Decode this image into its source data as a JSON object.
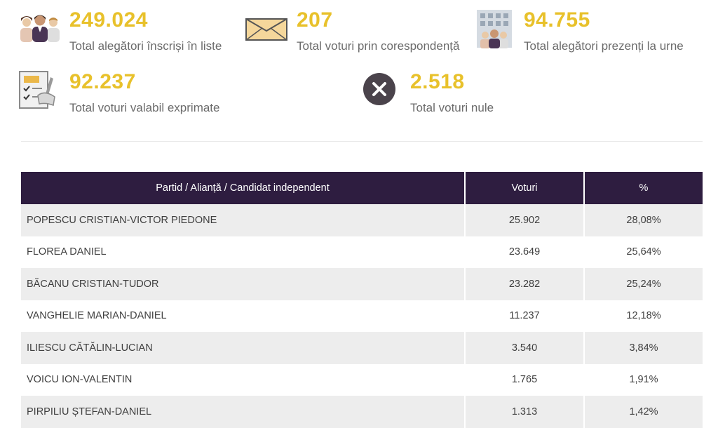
{
  "stats": {
    "registered": {
      "value": "249.024",
      "label": "Total alegători înscriși în liste",
      "icon": "people-group-icon"
    },
    "mail_votes": {
      "value": "207",
      "label": "Total voturi prin corespondență",
      "icon": "envelope-icon"
    },
    "present": {
      "value": "94.755",
      "label": "Total alegători prezenți la urne",
      "icon": "building-voters-icon"
    },
    "valid": {
      "value": "92.237",
      "label": "Total voturi valabil exprimate",
      "icon": "checklist-ballot-icon"
    },
    "null_votes": {
      "value": "2.518",
      "label": "Total voturi nule",
      "icon": "x-circle-icon"
    }
  },
  "colors": {
    "accent": "#e8c12b",
    "header_bg": "#2e1d40",
    "row_alt": "#ededed",
    "label": "#6b6b6b"
  },
  "table": {
    "headers": [
      "Partid / Alianță / Candidat independent",
      "Voturi",
      "%"
    ],
    "rows": [
      {
        "name": "POPESCU CRISTIAN-VICTOR PIEDONE",
        "votes": "25.902",
        "percent": "28,08%"
      },
      {
        "name": "FLOREA DANIEL",
        "votes": "23.649",
        "percent": "25,64%"
      },
      {
        "name": "BĂCANU CRISTIAN-TUDOR",
        "votes": "23.282",
        "percent": "25,24%"
      },
      {
        "name": "VANGHELIE MARIAN-DANIEL",
        "votes": "11.237",
        "percent": "12,18%"
      },
      {
        "name": "ILIESCU CĂTĂLIN-LUCIAN",
        "votes": "3.540",
        "percent": "3,84%"
      },
      {
        "name": "VOICU ION-VALENTIN",
        "votes": "1.765",
        "percent": "1,91%"
      },
      {
        "name": "PIRPILIU ȘTEFAN-DANIEL",
        "votes": "1.313",
        "percent": "1,42%"
      }
    ]
  }
}
